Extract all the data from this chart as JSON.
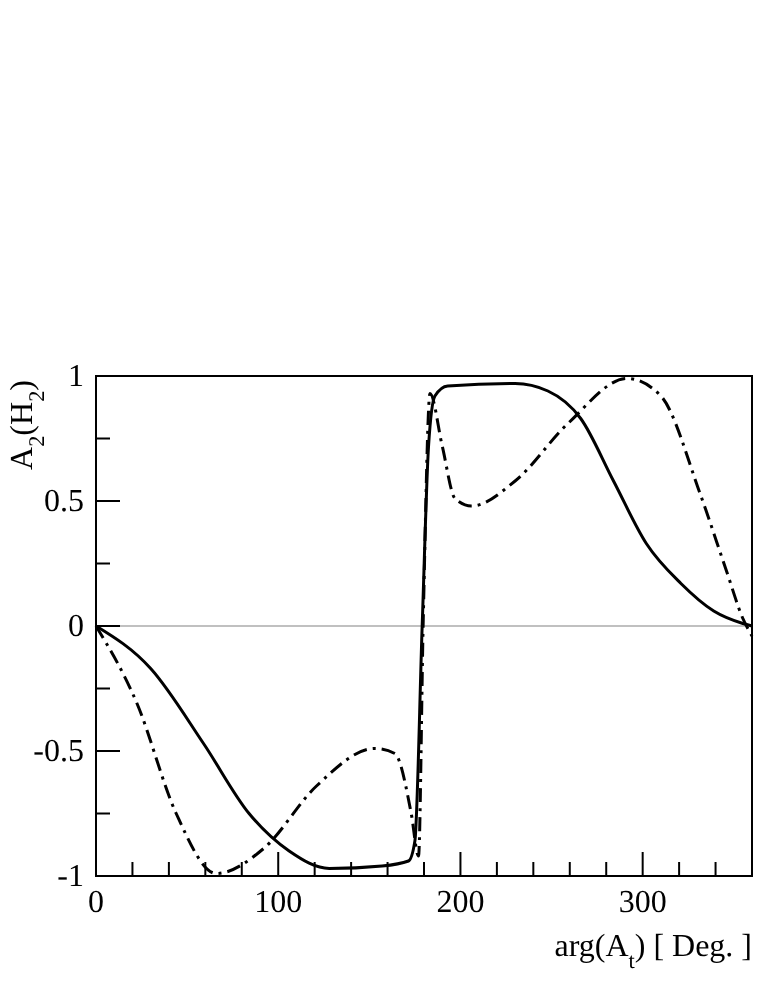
{
  "chart_data": {
    "type": "line",
    "xlabel": "arg(A$_{t}$) [ Deg. ]",
    "ylabel": "A$_{2}$(H$_{2}$)",
    "xlim": [
      0,
      360
    ],
    "ylim": [
      -1,
      1
    ],
    "xticks": [
      0,
      {
        "value": 20,
        "label": null
      },
      {
        "value": 40,
        "label": null
      },
      {
        "value": 60,
        "label": null
      },
      {
        "value": 80,
        "label": null
      },
      100,
      {
        "value": 120,
        "label": null
      },
      {
        "value": 140,
        "label": null
      },
      {
        "value": 160,
        "label": null
      },
      {
        "value": 180,
        "label": null
      },
      200,
      {
        "value": 220,
        "label": null
      },
      {
        "value": 240,
        "label": null
      },
      {
        "value": 260,
        "label": null
      },
      {
        "value": 280,
        "label": null
      },
      300,
      {
        "value": 320,
        "label": null
      },
      {
        "value": 340,
        "label": null
      }
    ],
    "yticks": [
      -1,
      {
        "value": -0.75,
        "label": null
      },
      -0.5,
      {
        "value": -0.25,
        "label": null
      },
      0,
      {
        "value": 0.25,
        "label": null
      },
      0.5,
      {
        "value": 0.75,
        "label": null
      },
      1
    ],
    "grid": false,
    "ref_lines": [
      {
        "axis": "y",
        "value": 0,
        "label": null,
        "color": "#c0c0c0"
      }
    ],
    "series": [
      {
        "color": "#000000",
        "line_style": "solid",
        "x": [
          0,
          30,
          59,
          84,
          106,
          128,
          157,
          171.5,
          175,
          179,
          182.5,
          186,
          193,
          230,
          248,
          266,
          284,
          302,
          321,
          339,
          355,
          360
        ],
        "values": [
          0,
          -0.17,
          -0.47,
          -0.75,
          -0.9,
          -0.97,
          -0.96,
          -0.94,
          -0.86,
          0,
          0.72,
          0.92,
          0.96,
          0.97,
          0.94,
          0.83,
          0.58,
          0.33,
          0.17,
          0.06,
          0.01,
          0
        ]
      },
      {
        "color": "#000000",
        "line_style": "dashdot",
        "x": [
          0,
          22.5,
          44,
          66,
          92,
          121,
          153,
          164,
          173,
          177,
          179.6,
          183.3,
          190,
          197,
          206,
          230,
          259,
          291.5,
          310,
          331.5,
          346,
          355,
          360
        ],
        "values": [
          0,
          -0.31,
          -0.75,
          -0.99,
          -0.89,
          -0.64,
          -0.49,
          -0.51,
          -0.75,
          -0.92,
          0.03,
          0.93,
          0.72,
          0.51,
          0.48,
          0.58,
          0.81,
          0.99,
          0.92,
          0.53,
          0.22,
          0.03,
          -0.04
        ]
      }
    ]
  }
}
